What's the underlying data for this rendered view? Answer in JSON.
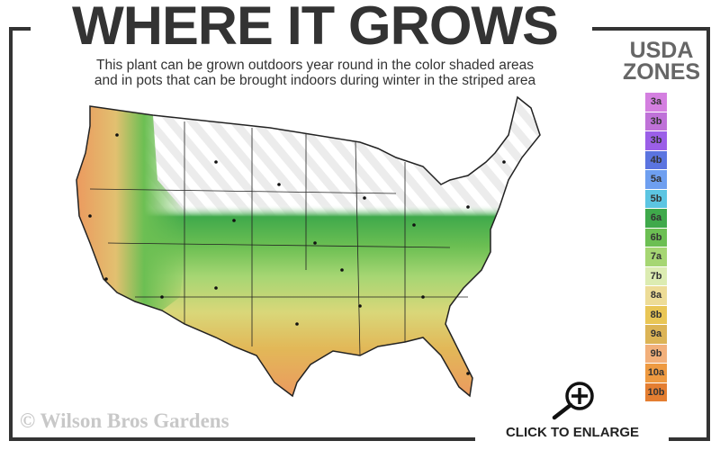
{
  "header": {
    "title": "WHERE IT GROWS",
    "subtitle_line1": "This plant can be grown outdoors year round in the color shaded areas",
    "subtitle_line2": "and in pots that can be brought indoors during winter in the striped area"
  },
  "legend": {
    "title_line1": "USDA",
    "title_line2": "ZONES",
    "zones": [
      {
        "label": "3a",
        "color": "#d47fe0"
      },
      {
        "label": "3b",
        "color": "#bf72d8"
      },
      {
        "label": "3b",
        "color": "#9b5fe8"
      },
      {
        "label": "4b",
        "color": "#5b74e0"
      },
      {
        "label": "5a",
        "color": "#6e9ff0"
      },
      {
        "label": "5b",
        "color": "#5cc5e2"
      },
      {
        "label": "6a",
        "color": "#3fa94b"
      },
      {
        "label": "6b",
        "color": "#6cbf53"
      },
      {
        "label": "7a",
        "color": "#a6d673"
      },
      {
        "label": "7b",
        "color": "#dcecb2"
      },
      {
        "label": "8a",
        "color": "#eddc97"
      },
      {
        "label": "8b",
        "color": "#e9c656"
      },
      {
        "label": "9a",
        "color": "#dcb456"
      },
      {
        "label": "9b",
        "color": "#f2b07b"
      },
      {
        "label": "10a",
        "color": "#ee9a41"
      },
      {
        "label": "10b",
        "color": "#e47e31"
      }
    ]
  },
  "footer": {
    "watermark": "© Wilson Bros Gardens",
    "enlarge_label": "CLICK TO ENLARGE"
  }
}
